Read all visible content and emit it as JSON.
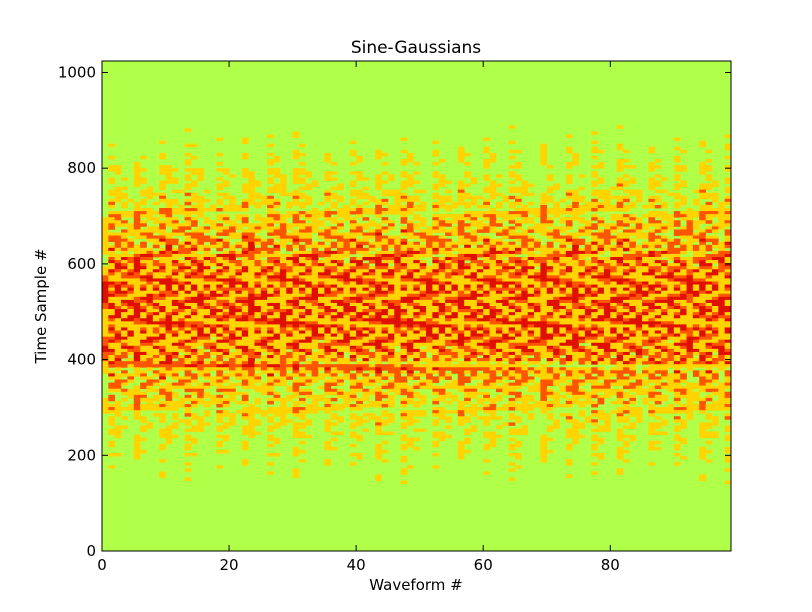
{
  "chart_data": {
    "type": "heatmap",
    "title": "Sine-Gaussians",
    "xlabel": "Waveform #",
    "ylabel": "Time Sample #",
    "xlim": [
      0,
      99
    ],
    "ylim": [
      0,
      1024
    ],
    "xticks": [
      0,
      20,
      40,
      60,
      80
    ],
    "yticks": [
      0,
      200,
      400,
      600,
      800,
      1000
    ],
    "grid": false,
    "legend": "none",
    "colors": {
      "background": "#b0ff48",
      "mid": "#ffd400",
      "high": "#ff5500",
      "highest": "#e01000"
    }
  }
}
